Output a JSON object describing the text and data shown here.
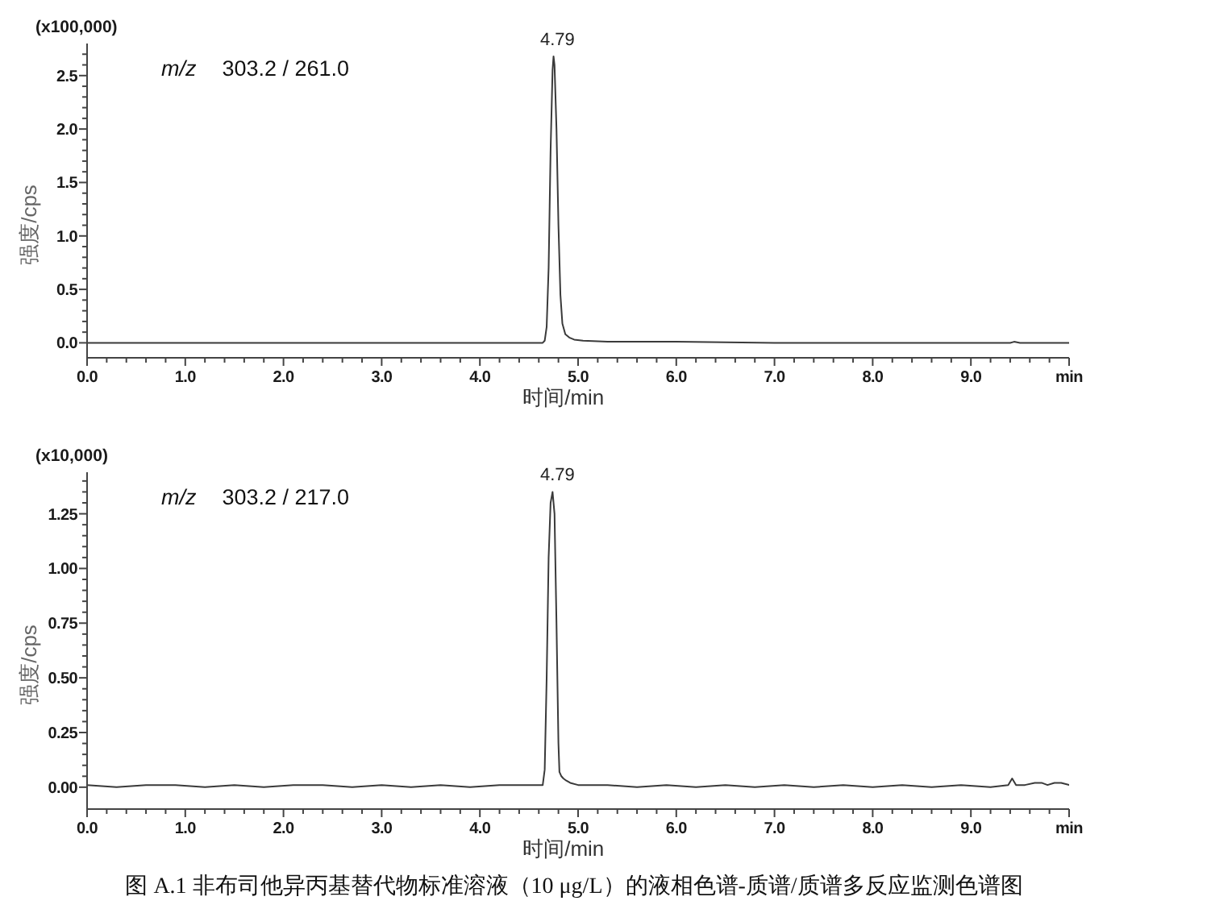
{
  "chart_data": [
    {
      "type": "line",
      "title": "m/z 303.2 / 261.0",
      "xlabel": "时间/min",
      "ylabel": "强度/cps",
      "annotations": [
        "(x100,000)",
        {
          "text": "4.79",
          "x": 4.79,
          "y": 2.68
        }
      ],
      "x": [
        0,
        0.5,
        1,
        2,
        3,
        4,
        4.5,
        4.64,
        4.66,
        4.68,
        4.7,
        4.72,
        4.74,
        4.75,
        4.76,
        4.78,
        4.8,
        4.82,
        4.84,
        4.87,
        4.91,
        4.96,
        5.05,
        5.3,
        6,
        7,
        8,
        9,
        9.4,
        9.44,
        9.5,
        10
      ],
      "series": [
        {
          "color": "#3a3a3a",
          "values": [
            0,
            0,
            0,
            0,
            0,
            0,
            0,
            0,
            0.02,
            0.15,
            0.7,
            1.8,
            2.55,
            2.68,
            2.6,
            2,
            1.1,
            0.45,
            0.18,
            0.08,
            0.05,
            0.03,
            0.02,
            0.01,
            0.01,
            0,
            0,
            0,
            0,
            0.01,
            0,
            0
          ]
        }
      ],
      "xlim": [
        0,
        10
      ],
      "ylim": [
        -0.14,
        2.8
      ],
      "xticks": [
        {
          "value": 0,
          "label": "0.0"
        },
        {
          "value": 0.2,
          "label": null
        },
        {
          "value": 0.4,
          "label": null
        },
        {
          "value": 0.6,
          "label": null
        },
        {
          "value": 0.8,
          "label": null
        },
        {
          "value": 1,
          "label": "1.0"
        },
        {
          "value": 1.2,
          "label": null
        },
        {
          "value": 1.4,
          "label": null
        },
        {
          "value": 1.6,
          "label": null
        },
        {
          "value": 1.8,
          "label": null
        },
        {
          "value": 2,
          "label": "2.0"
        },
        {
          "value": 2.2,
          "label": null
        },
        {
          "value": 2.4,
          "label": null
        },
        {
          "value": 2.6,
          "label": null
        },
        {
          "value": 2.8,
          "label": null
        },
        {
          "value": 3,
          "label": "3.0"
        },
        {
          "value": 3.2,
          "label": null
        },
        {
          "value": 3.4,
          "label": null
        },
        {
          "value": 3.6,
          "label": null
        },
        {
          "value": 3.8,
          "label": null
        },
        {
          "value": 4,
          "label": "4.0"
        },
        {
          "value": 4.2,
          "label": null
        },
        {
          "value": 4.4,
          "label": null
        },
        {
          "value": 4.6,
          "label": null
        },
        {
          "value": 4.8,
          "label": null
        },
        {
          "value": 5,
          "label": "5.0"
        },
        {
          "value": 5.2,
          "label": null
        },
        {
          "value": 5.4,
          "label": null
        },
        {
          "value": 5.6,
          "label": null
        },
        {
          "value": 5.8,
          "label": null
        },
        {
          "value": 6,
          "label": "6.0"
        },
        {
          "value": 6.2,
          "label": null
        },
        {
          "value": 6.4,
          "label": null
        },
        {
          "value": 6.6,
          "label": null
        },
        {
          "value": 6.8,
          "label": null
        },
        {
          "value": 7,
          "label": "7.0"
        },
        {
          "value": 7.2,
          "label": null
        },
        {
          "value": 7.4,
          "label": null
        },
        {
          "value": 7.6,
          "label": null
        },
        {
          "value": 7.8,
          "label": null
        },
        {
          "value": 8,
          "label": "8.0"
        },
        {
          "value": 8.2,
          "label": null
        },
        {
          "value": 8.4,
          "label": null
        },
        {
          "value": 8.6,
          "label": null
        },
        {
          "value": 8.8,
          "label": null
        },
        {
          "value": 9,
          "label": "9.0"
        },
        {
          "value": 9.2,
          "label": null
        },
        {
          "value": 9.4,
          "label": null
        },
        {
          "value": 9.6,
          "label": null
        },
        {
          "value": 9.8,
          "label": null
        },
        {
          "value": 10,
          "label": "min"
        }
      ],
      "yticks": [
        {
          "value": 0,
          "label": "0.0"
        },
        {
          "value": 0.1,
          "label": null
        },
        {
          "value": 0.2,
          "label": null
        },
        {
          "value": 0.3,
          "label": null
        },
        {
          "value": 0.4,
          "label": null
        },
        {
          "value": 0.5,
          "label": "0.5"
        },
        {
          "value": 0.6,
          "label": null
        },
        {
          "value": 0.7,
          "label": null
        },
        {
          "value": 0.8,
          "label": null
        },
        {
          "value": 0.9,
          "label": null
        },
        {
          "value": 1,
          "label": "1.0"
        },
        {
          "value": 1.1,
          "label": null
        },
        {
          "value": 1.2,
          "label": null
        },
        {
          "value": 1.3,
          "label": null
        },
        {
          "value": 1.4,
          "label": null
        },
        {
          "value": 1.5,
          "label": "1.5"
        },
        {
          "value": 1.6,
          "label": null
        },
        {
          "value": 1.7,
          "label": null
        },
        {
          "value": 1.8,
          "label": null
        },
        {
          "value": 1.9,
          "label": null
        },
        {
          "value": 2,
          "label": "2.0"
        },
        {
          "value": 2.1,
          "label": null
        },
        {
          "value": 2.2,
          "label": null
        },
        {
          "value": 2.3,
          "label": null
        },
        {
          "value": 2.4,
          "label": null
        },
        {
          "value": 2.5,
          "label": "2.5"
        },
        {
          "value": 2.6,
          "label": null
        },
        {
          "value": 2.7,
          "label": null
        }
      ]
    },
    {
      "type": "line",
      "title": "m/z 303.2 / 217.0",
      "xlabel": "时间/min",
      "ylabel": "强度/cps",
      "annotations": [
        "(x10,000)",
        {
          "text": "4.79",
          "x": 4.79,
          "y": 1.35
        },
        "图 A.1 非布司他异丙基替代物标准溶液（10 μg/L）的液相色谱-质谱/质谱多反应监测色谱图"
      ],
      "x": [
        0,
        0.3,
        0.6,
        0.9,
        1.2,
        1.5,
        1.8,
        2.1,
        2.4,
        2.7,
        3,
        3.3,
        3.6,
        3.9,
        4.2,
        4.5,
        4.64,
        4.66,
        4.68,
        4.7,
        4.72,
        4.74,
        4.76,
        4.78,
        4.8,
        4.81,
        4.82,
        4.83,
        4.85,
        4.88,
        4.92,
        5,
        5.3,
        5.6,
        5.9,
        6.2,
        6.5,
        6.8,
        7.1,
        7.4,
        7.7,
        8,
        8.3,
        8.6,
        8.9,
        9.2,
        9.38,
        9.42,
        9.46,
        9.55,
        9.65,
        9.72,
        9.78,
        9.85,
        9.92,
        10
      ],
      "series": [
        {
          "color": "#3a3a3a",
          "values": [
            0.01,
            0,
            0.01,
            0.01,
            0,
            0.01,
            0,
            0.01,
            0.01,
            0,
            0.01,
            0,
            0.01,
            0,
            0.01,
            0.01,
            0.01,
            0.08,
            0.5,
            1.05,
            1.3,
            1.35,
            1.25,
            0.75,
            0.2,
            0.07,
            0.06,
            0.05,
            0.04,
            0.03,
            0.02,
            0.01,
            0.01,
            0,
            0.01,
            0,
            0.01,
            0,
            0.01,
            0,
            0.01,
            0,
            0.01,
            0,
            0.01,
            0,
            0.01,
            0.04,
            0.01,
            0.01,
            0.02,
            0.02,
            0.01,
            0.02,
            0.02,
            0.01
          ]
        }
      ],
      "xlim": [
        0,
        10
      ],
      "ylim": [
        -0.1,
        1.44
      ],
      "xticks": [
        {
          "value": 0,
          "label": "0.0"
        },
        {
          "value": 0.2,
          "label": null
        },
        {
          "value": 0.4,
          "label": null
        },
        {
          "value": 0.6,
          "label": null
        },
        {
          "value": 0.8,
          "label": null
        },
        {
          "value": 1,
          "label": "1.0"
        },
        {
          "value": 1.2,
          "label": null
        },
        {
          "value": 1.4,
          "label": null
        },
        {
          "value": 1.6,
          "label": null
        },
        {
          "value": 1.8,
          "label": null
        },
        {
          "value": 2,
          "label": "2.0"
        },
        {
          "value": 2.2,
          "label": null
        },
        {
          "value": 2.4,
          "label": null
        },
        {
          "value": 2.6,
          "label": null
        },
        {
          "value": 2.8,
          "label": null
        },
        {
          "value": 3,
          "label": "3.0"
        },
        {
          "value": 3.2,
          "label": null
        },
        {
          "value": 3.4,
          "label": null
        },
        {
          "value": 3.6,
          "label": null
        },
        {
          "value": 3.8,
          "label": null
        },
        {
          "value": 4,
          "label": "4.0"
        },
        {
          "value": 4.2,
          "label": null
        },
        {
          "value": 4.4,
          "label": null
        },
        {
          "value": 4.6,
          "label": null
        },
        {
          "value": 4.8,
          "label": null
        },
        {
          "value": 5,
          "label": "5.0"
        },
        {
          "value": 5.2,
          "label": null
        },
        {
          "value": 5.4,
          "label": null
        },
        {
          "value": 5.6,
          "label": null
        },
        {
          "value": 5.8,
          "label": null
        },
        {
          "value": 6,
          "label": "6.0"
        },
        {
          "value": 6.2,
          "label": null
        },
        {
          "value": 6.4,
          "label": null
        },
        {
          "value": 6.6,
          "label": null
        },
        {
          "value": 6.8,
          "label": null
        },
        {
          "value": 7,
          "label": "7.0"
        },
        {
          "value": 7.2,
          "label": null
        },
        {
          "value": 7.4,
          "label": null
        },
        {
          "value": 7.6,
          "label": null
        },
        {
          "value": 7.8,
          "label": null
        },
        {
          "value": 8,
          "label": "8.0"
        },
        {
          "value": 8.2,
          "label": null
        },
        {
          "value": 8.4,
          "label": null
        },
        {
          "value": 8.6,
          "label": null
        },
        {
          "value": 8.8,
          "label": null
        },
        {
          "value": 9,
          "label": "9.0"
        },
        {
          "value": 9.2,
          "label": null
        },
        {
          "value": 9.4,
          "label": null
        },
        {
          "value": 9.6,
          "label": null
        },
        {
          "value": 9.8,
          "label": null
        },
        {
          "value": 10,
          "label": "min"
        }
      ],
      "yticks": [
        {
          "value": 0,
          "label": "0.00"
        },
        {
          "value": 0.05,
          "label": null
        },
        {
          "value": 0.1,
          "label": null
        },
        {
          "value": 0.15,
          "label": null
        },
        {
          "value": 0.2,
          "label": null
        },
        {
          "value": 0.25,
          "label": "0.25"
        },
        {
          "value": 0.3,
          "label": null
        },
        {
          "value": 0.35,
          "label": null
        },
        {
          "value": 0.4,
          "label": null
        },
        {
          "value": 0.45,
          "label": null
        },
        {
          "value": 0.5,
          "label": "0.50"
        },
        {
          "value": 0.55,
          "label": null
        },
        {
          "value": 0.6,
          "label": null
        },
        {
          "value": 0.65,
          "label": null
        },
        {
          "value": 0.7,
          "label": null
        },
        {
          "value": 0.75,
          "label": "0.75"
        },
        {
          "value": 0.8,
          "label": null
        },
        {
          "value": 0.85,
          "label": null
        },
        {
          "value": 0.9,
          "label": null
        },
        {
          "value": 0.95,
          "label": null
        },
        {
          "value": 1,
          "label": "1.00"
        },
        {
          "value": 1.05,
          "label": null
        },
        {
          "value": 1.1,
          "label": null
        },
        {
          "value": 1.15,
          "label": null
        },
        {
          "value": 1.2,
          "label": null
        },
        {
          "value": 1.25,
          "label": "1.25"
        },
        {
          "value": 1.3,
          "label": null
        },
        {
          "value": 1.35,
          "label": null
        },
        {
          "value": 1.4,
          "label": null
        }
      ]
    }
  ]
}
